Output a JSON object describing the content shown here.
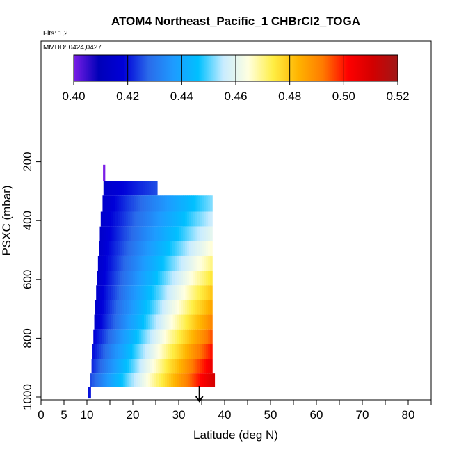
{
  "title": "ATOM4 Northeast_Pacific_1 CHBrCl2_TOGA",
  "flights_label": "Flts: 1,2",
  "mmdd_label": "MMDD: 0424,0427",
  "colorbar": {
    "min": 0.4,
    "max": 0.52,
    "ticks": [
      "0.40",
      "0.42",
      "0.44",
      "0.46",
      "0.48",
      "0.50",
      "0.52"
    ],
    "stops": [
      "#7a1ee6",
      "#0000b8",
      "#0000d8",
      "#2a6bea",
      "#1e9bff",
      "#00c0ff",
      "#c8ecff",
      "#ffffe0",
      "#ffee44",
      "#ffb400",
      "#ff7a00",
      "#ff0000",
      "#d20000",
      "#a01818"
    ]
  },
  "chart_data": {
    "type": "heatmap",
    "title": "ATOM4 Northeast_Pacific_1 CHBrCl2_TOGA",
    "xlabel": "Latitude (deg N)",
    "ylabel": "PSXC (mbar)",
    "xlim": [
      0,
      85
    ],
    "ylim": [
      1000,
      0
    ],
    "x_ticks": [
      "0",
      "5",
      "10",
      "20",
      "30",
      "40",
      "50",
      "60",
      "70",
      "80"
    ],
    "y_ticks": [
      "200",
      "400",
      "600",
      "800",
      "1000"
    ],
    "arrow_latitude": 34.5,
    "rows": [
      {
        "p_top": 210,
        "p_bot": 265,
        "lat_start": 13.5,
        "lat_end": 13.9,
        "v_start": 0.4,
        "v_end": 0.4
      },
      {
        "p_top": 265,
        "p_bot": 315,
        "lat_start": 13.6,
        "lat_end": 25.3,
        "v_start": 0.415,
        "v_end": 0.425
      },
      {
        "p_top": 315,
        "p_bot": 370,
        "lat_start": 13.4,
        "lat_end": 37.3,
        "v_start": 0.415,
        "v_end": 0.452
      },
      {
        "p_top": 370,
        "p_bot": 420,
        "lat_start": 13.0,
        "lat_end": 37.3,
        "v_start": 0.415,
        "v_end": 0.456
      },
      {
        "p_top": 420,
        "p_bot": 470,
        "lat_start": 12.8,
        "lat_end": 37.3,
        "v_start": 0.415,
        "v_end": 0.46
      },
      {
        "p_top": 470,
        "p_bot": 520,
        "lat_start": 12.6,
        "lat_end": 37.3,
        "v_start": 0.415,
        "v_end": 0.465
      },
      {
        "p_top": 520,
        "p_bot": 570,
        "lat_start": 12.4,
        "lat_end": 37.3,
        "v_start": 0.415,
        "v_end": 0.47
      },
      {
        "p_top": 570,
        "p_bot": 620,
        "lat_start": 12.2,
        "lat_end": 37.3,
        "v_start": 0.415,
        "v_end": 0.475
      },
      {
        "p_top": 620,
        "p_bot": 670,
        "lat_start": 12.0,
        "lat_end": 37.3,
        "v_start": 0.415,
        "v_end": 0.48
      },
      {
        "p_top": 670,
        "p_bot": 720,
        "lat_start": 11.8,
        "lat_end": 37.3,
        "v_start": 0.415,
        "v_end": 0.485
      },
      {
        "p_top": 720,
        "p_bot": 770,
        "lat_start": 11.6,
        "lat_end": 37.3,
        "v_start": 0.415,
        "v_end": 0.49
      },
      {
        "p_top": 770,
        "p_bot": 820,
        "lat_start": 11.4,
        "lat_end": 37.3,
        "v_start": 0.418,
        "v_end": 0.495
      },
      {
        "p_top": 820,
        "p_bot": 870,
        "lat_start": 11.2,
        "lat_end": 37.3,
        "v_start": 0.42,
        "v_end": 0.5
      },
      {
        "p_top": 870,
        "p_bot": 920,
        "lat_start": 11.0,
        "lat_end": 37.3,
        "v_start": 0.422,
        "v_end": 0.505
      },
      {
        "p_top": 920,
        "p_bot": 965,
        "lat_start": 10.7,
        "lat_end": 37.8,
        "v_start": 0.425,
        "v_end": 0.51
      },
      {
        "p_top": 965,
        "p_bot": 1005,
        "lat_start": 10.3,
        "lat_end": 10.8,
        "v_start": 0.42,
        "v_end": 0.42
      }
    ]
  }
}
